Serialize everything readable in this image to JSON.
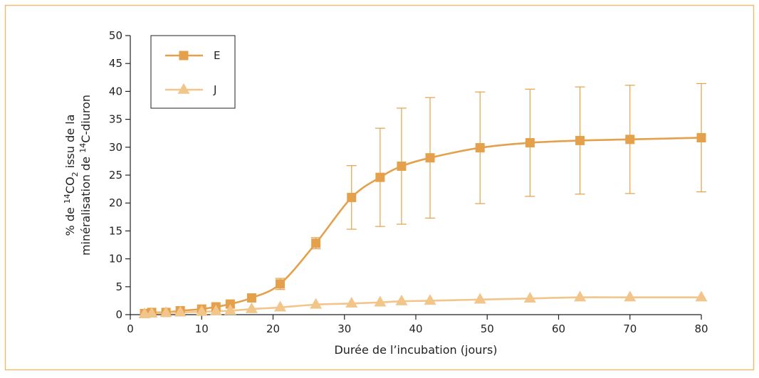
{
  "chart_data": {
    "type": "line",
    "title": "",
    "xlabel": "Durée de l’incubation (jours)",
    "ylabel_line1": {
      "pre": "% de ",
      "sup1": "14",
      "mid": "CO",
      "sub": "2",
      "post": " issu de la"
    },
    "ylabel_line2": {
      "pre": "minéralisation de ",
      "sup": "14",
      "post": "C-diuron"
    },
    "xlim": [
      0,
      80
    ],
    "ylim": [
      0,
      50
    ],
    "xticks": [
      0,
      10,
      20,
      30,
      40,
      50,
      60,
      70,
      80
    ],
    "yticks": [
      0,
      5,
      10,
      15,
      20,
      25,
      30,
      35,
      40,
      45,
      50
    ],
    "grid": false,
    "legend_position": "top-left",
    "series": [
      {
        "name": "E",
        "marker": "square",
        "color": "#E4A04A",
        "x": [
          2,
          3,
          5,
          7,
          10,
          12,
          14,
          17,
          21,
          26,
          31,
          35,
          38,
          42,
          49,
          56,
          63,
          70,
          80
        ],
        "y": [
          0.2,
          0.4,
          0.4,
          0.7,
          1.0,
          1.4,
          1.9,
          3.0,
          5.5,
          12.8,
          21.0,
          24.6,
          26.6,
          28.1,
          29.9,
          30.8,
          31.2,
          31.4,
          31.7
        ],
        "error": [
          0,
          0,
          0,
          0,
          0,
          0,
          0,
          0,
          1.0,
          1.0,
          5.7,
          8.8,
          10.4,
          10.8,
          10.0,
          9.6,
          9.6,
          9.7,
          9.7
        ]
      },
      {
        "name": "J",
        "marker": "triangle",
        "color": "#F2C58A",
        "x": [
          2,
          3,
          5,
          7,
          10,
          12,
          14,
          17,
          21,
          26,
          31,
          35,
          38,
          42,
          49,
          56,
          63,
          70,
          80
        ],
        "y": [
          0.1,
          0.2,
          0.3,
          0.4,
          0.5,
          0.6,
          0.7,
          1.0,
          1.3,
          1.8,
          2.0,
          2.2,
          2.4,
          2.5,
          2.7,
          2.9,
          3.1,
          3.1,
          3.1
        ]
      }
    ]
  },
  "colors": {
    "frame_border": "#E9BE75",
    "axis": "#222222"
  }
}
